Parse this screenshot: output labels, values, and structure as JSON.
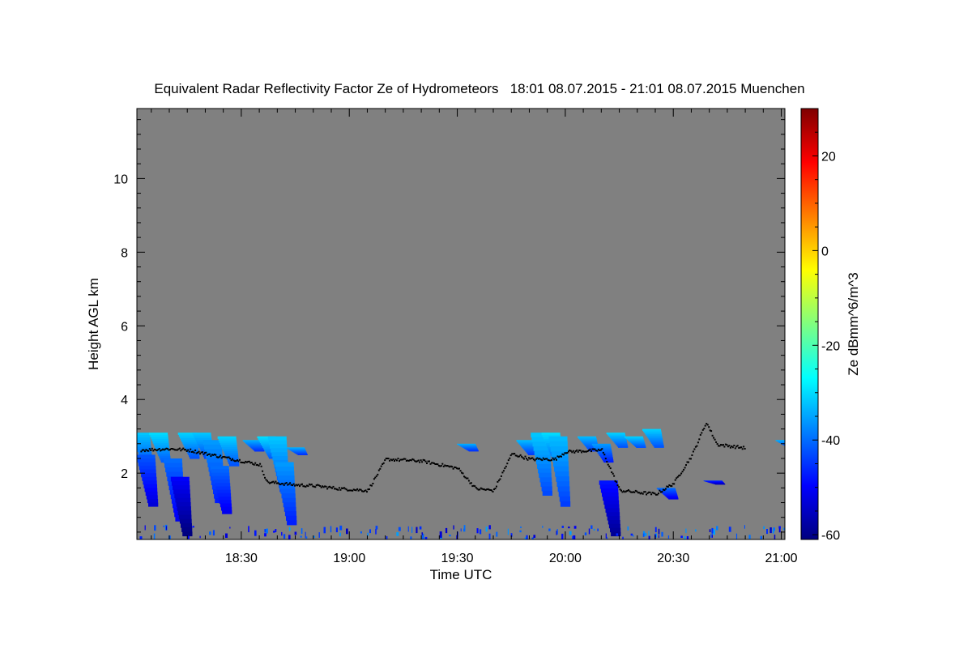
{
  "chart_data": {
    "type": "heatmap",
    "title": "Equivalent Radar Reflectivity Factor Ze of Hydrometeors   18:01 08.07.2015 - 21:01 08.07.2015 Muenchen",
    "xlabel": "Time UTC",
    "ylabel": "Height AGL km",
    "colorbar_label": "Ze dBmm^6/m^3",
    "x_range_minutes_utc": [
      1081,
      1261
    ],
    "y_range_km": [
      0.2,
      11.9
    ],
    "x_ticks": [
      {
        "label": "18:30",
        "value": 1110
      },
      {
        "label": "19:00",
        "value": 1140
      },
      {
        "label": "19:30",
        "value": 1170
      },
      {
        "label": "20:00",
        "value": 1200
      },
      {
        "label": "20:30",
        "value": 1230
      },
      {
        "label": "21:00",
        "value": 1260
      }
    ],
    "y_ticks": [
      2,
      4,
      6,
      8,
      10
    ],
    "colorbar_range": [
      -61,
      30
    ],
    "colorbar_ticks": [
      20,
      0,
      -20,
      -40,
      -60
    ],
    "colors": {
      "background_no_signal": "#808080",
      "cloud_base_points": "#000000"
    },
    "echo_patches": [
      {
        "t": 1082,
        "top": 3.1,
        "bottom": 2.2,
        "z": -32
      },
      {
        "t": 1083.5,
        "top": 2.5,
        "bottom": 1.1,
        "z": -42
      },
      {
        "t": 1087,
        "top": 3.1,
        "bottom": 2.3,
        "z": -30
      },
      {
        "t": 1091,
        "top": 2.4,
        "bottom": 0.7,
        "z": -40
      },
      {
        "t": 1093,
        "top": 1.9,
        "bottom": 0.3,
        "z": -50
      },
      {
        "t": 1095,
        "top": 3.1,
        "bottom": 2.4,
        "z": -31
      },
      {
        "t": 1099,
        "top": 3.1,
        "bottom": 2.4,
        "z": -32
      },
      {
        "t": 1102,
        "top": 2.9,
        "bottom": 1.2,
        "z": -36
      },
      {
        "t": 1104,
        "top": 2.2,
        "bottom": 0.9,
        "z": -40
      },
      {
        "t": 1106,
        "top": 3.0,
        "bottom": 2.2,
        "z": -31
      },
      {
        "t": 1113,
        "top": 2.9,
        "bottom": 2.6,
        "z": -34
      },
      {
        "t": 1117,
        "top": 3.0,
        "bottom": 2.4,
        "z": -30
      },
      {
        "t": 1120,
        "top": 3.0,
        "bottom": 1.5,
        "z": -32
      },
      {
        "t": 1122,
        "top": 2.3,
        "bottom": 0.6,
        "z": -36
      },
      {
        "t": 1125,
        "top": 2.7,
        "bottom": 2.5,
        "z": -34
      },
      {
        "t": 1172.5,
        "top": 2.8,
        "bottom": 2.6,
        "z": -34
      },
      {
        "t": 1189,
        "top": 2.9,
        "bottom": 2.5,
        "z": -33
      },
      {
        "t": 1193,
        "top": 3.1,
        "bottom": 1.4,
        "z": -32
      },
      {
        "t": 1196,
        "top": 3.1,
        "bottom": 2.3,
        "z": -30
      },
      {
        "t": 1198,
        "top": 3.0,
        "bottom": 1.1,
        "z": -33
      },
      {
        "t": 1206,
        "top": 3.0,
        "bottom": 2.6,
        "z": -33
      },
      {
        "t": 1210,
        "top": 2.8,
        "bottom": 2.3,
        "z": -36
      },
      {
        "t": 1212,
        "top": 1.8,
        "bottom": 0.3,
        "z": -48
      },
      {
        "t": 1214,
        "top": 3.1,
        "bottom": 2.7,
        "z": -31
      },
      {
        "t": 1219,
        "top": 3.0,
        "bottom": 2.7,
        "z": -31
      },
      {
        "t": 1224,
        "top": 3.2,
        "bottom": 2.7,
        "z": -31
      },
      {
        "t": 1228,
        "top": 1.6,
        "bottom": 1.3,
        "z": -40
      },
      {
        "t": 1241,
        "top": 1.8,
        "bottom": 1.7,
        "z": -45
      },
      {
        "t": 1261,
        "top": 2.9,
        "bottom": 2.7,
        "z": -34
      }
    ],
    "cloud_base_trend": [
      {
        "t": 1082,
        "h": 2.65
      },
      {
        "t": 1090,
        "h": 2.68
      },
      {
        "t": 1095,
        "h": 2.65
      },
      {
        "t": 1100,
        "h": 2.55
      },
      {
        "t": 1110,
        "h": 2.35
      },
      {
        "t": 1115,
        "h": 2.25
      },
      {
        "t": 1117,
        "h": 1.78
      },
      {
        "t": 1125,
        "h": 1.7
      },
      {
        "t": 1130,
        "h": 1.68
      },
      {
        "t": 1137,
        "h": 1.6
      },
      {
        "t": 1145,
        "h": 1.55
      },
      {
        "t": 1150,
        "h": 2.4
      },
      {
        "t": 1160,
        "h": 2.35
      },
      {
        "t": 1165,
        "h": 2.25
      },
      {
        "t": 1170,
        "h": 2.15
      },
      {
        "t": 1175,
        "h": 1.6
      },
      {
        "t": 1180,
        "h": 1.55
      },
      {
        "t": 1185,
        "h": 2.55
      },
      {
        "t": 1190,
        "h": 2.4
      },
      {
        "t": 1197,
        "h": 2.4
      },
      {
        "t": 1200,
        "h": 2.6
      },
      {
        "t": 1210,
        "h": 2.65
      },
      {
        "t": 1215,
        "h": 1.55
      },
      {
        "t": 1225,
        "h": 1.45
      },
      {
        "t": 1230,
        "h": 1.75
      },
      {
        "t": 1235,
        "h": 2.5
      },
      {
        "t": 1239,
        "h": 3.4
      },
      {
        "t": 1242,
        "h": 2.8
      },
      {
        "t": 1250,
        "h": 2.7
      }
    ]
  }
}
